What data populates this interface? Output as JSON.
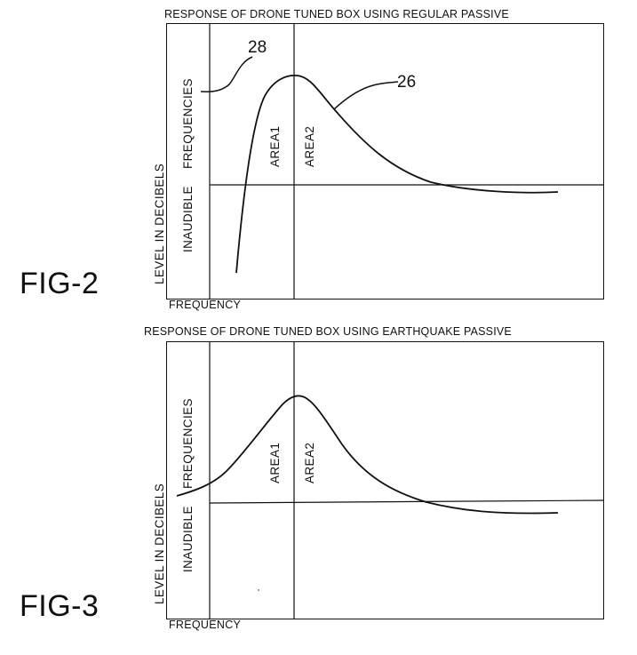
{
  "fig2": {
    "label": "FIG-2",
    "title": "RESPONSE OF DRONE TUNED BOX USING REGULAR PASSIVE",
    "xlabel": "FREQUENCY",
    "ylabel": "LEVEL IN DECIBELS",
    "inaudible_label": "INAUDIBLE",
    "frequencies_label": "FREQUENCIES",
    "area1_label": "AREA1",
    "area2_label": "AREA2",
    "ref_curve": "26",
    "ref_start": "28"
  },
  "fig3": {
    "label": "FIG-3",
    "title": "RESPONSE OF DRONE TUNED BOX USING EARTHQUAKE PASSIVE",
    "xlabel": "FREQUENCY",
    "ylabel": "LEVEL IN DECIBELS",
    "inaudible_label": "INAUDIBLE",
    "frequencies_label": "FREQUENCIES",
    "area1_label": "AREA1",
    "area2_label": "AREA2"
  },
  "colors": {
    "ink": "#111111",
    "paper": "#ffffff"
  }
}
